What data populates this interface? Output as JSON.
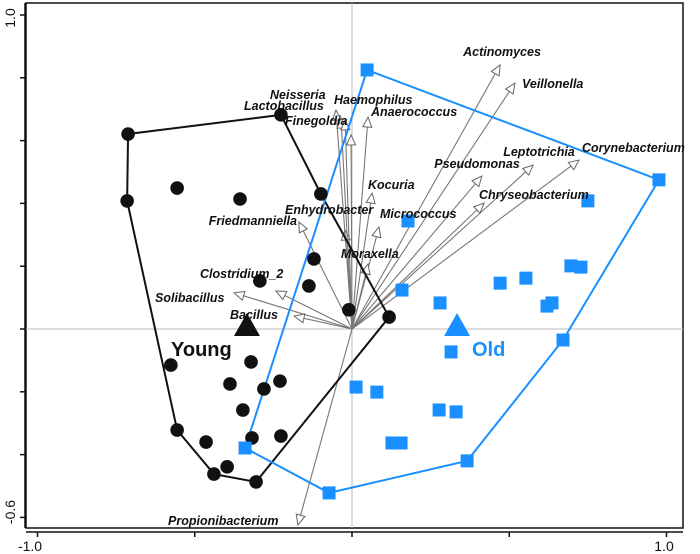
{
  "chart_data": {
    "type": "scatter",
    "subtype": "biplot",
    "title": "",
    "xlabel": "",
    "ylabel": "",
    "xlim": [
      -1.0,
      1.0
    ],
    "ylim": [
      -0.6,
      1.0
    ],
    "x_tick_labels": [
      "-1.0",
      "1.0"
    ],
    "y_tick_labels": [
      "1.0",
      "-0.6"
    ],
    "x_ticks": [
      -1.0,
      -0.5,
      0,
      0.5,
      1.0
    ],
    "y_ticks": [
      -0.6,
      -0.4,
      -0.2,
      0,
      0.2,
      0.4,
      0.6,
      0.8,
      1.0
    ],
    "zero_lines": true,
    "colors": {
      "young": "#111111",
      "old": "#1a8fff",
      "arrows": "#777777"
    },
    "groups": [
      {
        "name": "Young",
        "marker": "circle",
        "color": "#111111",
        "centroid": [
          -0.334,
          0.003
        ],
        "points": [
          [
            -0.712,
            0.621
          ],
          [
            -0.226,
            0.682
          ],
          [
            -0.715,
            0.408
          ],
          [
            -0.556,
            0.449
          ],
          [
            -0.356,
            0.414
          ],
          [
            -0.099,
            0.43
          ],
          [
            -0.121,
            0.223
          ],
          [
            -0.293,
            0.153
          ],
          [
            -0.137,
            0.137
          ],
          [
            -0.01,
            0.061
          ],
          [
            0.118,
            0.038
          ],
          [
            -0.576,
            -0.115
          ],
          [
            -0.321,
            -0.105
          ],
          [
            -0.388,
            -0.175
          ],
          [
            -0.229,
            -0.166
          ],
          [
            -0.28,
            -0.191
          ],
          [
            -0.347,
            -0.258
          ],
          [
            -0.556,
            -0.322
          ],
          [
            -0.318,
            -0.347
          ],
          [
            -0.226,
            -0.341
          ],
          [
            -0.464,
            -0.36
          ],
          [
            -0.397,
            -0.439
          ],
          [
            -0.439,
            -0.462
          ],
          [
            -0.305,
            -0.487
          ]
        ],
        "hull": [
          0,
          1,
          5,
          10,
          23,
          22,
          17,
          2
        ]
      },
      {
        "name": "Old",
        "marker": "square",
        "color": "#1a8fff",
        "centroid": [
          0.334,
          0.003
        ],
        "points": [
          [
            0.048,
            0.825
          ],
          [
            0.976,
            0.475
          ],
          [
            0.75,
            0.408
          ],
          [
            0.178,
            0.344
          ],
          [
            0.696,
            0.201
          ],
          [
            0.728,
            0.197
          ],
          [
            0.553,
            0.162
          ],
          [
            0.471,
            0.146
          ],
          [
            0.159,
            0.124
          ],
          [
            0.28,
            0.083
          ],
          [
            0.636,
            0.083
          ],
          [
            0.62,
            0.073
          ],
          [
            0.671,
            -0.035
          ],
          [
            0.315,
            -0.073
          ],
          [
            0.013,
            -0.185
          ],
          [
            0.079,
            -0.201
          ],
          [
            0.277,
            -0.258
          ],
          [
            0.331,
            -0.264
          ],
          [
            0.127,
            -0.363
          ],
          [
            0.156,
            -0.363
          ],
          [
            -0.34,
            -0.379
          ],
          [
            0.366,
            -0.42
          ],
          [
            -0.073,
            -0.522
          ]
        ],
        "hull": [
          0,
          1,
          12,
          21,
          22,
          20
        ]
      }
    ],
    "arrows": [
      {
        "name": "Actinomyces",
        "x": 0.471,
        "y": 0.841
      },
      {
        "name": "Veillonella",
        "x": 0.518,
        "y": 0.783
      },
      {
        "name": "Corynebacterium",
        "x": 0.722,
        "y": 0.538
      },
      {
        "name": "Leptotrichia",
        "x": 0.576,
        "y": 0.522
      },
      {
        "name": "Pseudomonas",
        "x": 0.413,
        "y": 0.487
      },
      {
        "name": "Chryseobacterium",
        "x": 0.42,
        "y": 0.401
      },
      {
        "name": "Kocuria",
        "x": 0.064,
        "y": 0.433
      },
      {
        "name": "Micrococcus",
        "x": 0.086,
        "y": 0.325
      },
      {
        "name": "Moraxella",
        "x": 0.051,
        "y": 0.207
      },
      {
        "name": "Enhydrobacter",
        "x": -0.022,
        "y": 0.315
      },
      {
        "name": "Friedmanniella",
        "x": -0.169,
        "y": 0.341
      },
      {
        "name": "Clostridium_2",
        "x": -0.242,
        "y": 0.121
      },
      {
        "name": "Solibacillus",
        "x": -0.375,
        "y": 0.115
      },
      {
        "name": "Bacillus",
        "x": -0.184,
        "y": 0.041
      },
      {
        "name": "Propionibacterium",
        "x": -0.172,
        "y": -0.624
      },
      {
        "name": "Neisseria",
        "x": -0.051,
        "y": 0.697
      },
      {
        "name": "Lactobacillus",
        "x": -0.035,
        "y": 0.672
      },
      {
        "name": "Haemophilus",
        "x": -0.022,
        "y": 0.666
      },
      {
        "name": "Finegoldia",
        "x": -0.003,
        "y": 0.618
      },
      {
        "name": "Anaerococcus",
        "x": 0.051,
        "y": 0.675
      }
    ]
  }
}
